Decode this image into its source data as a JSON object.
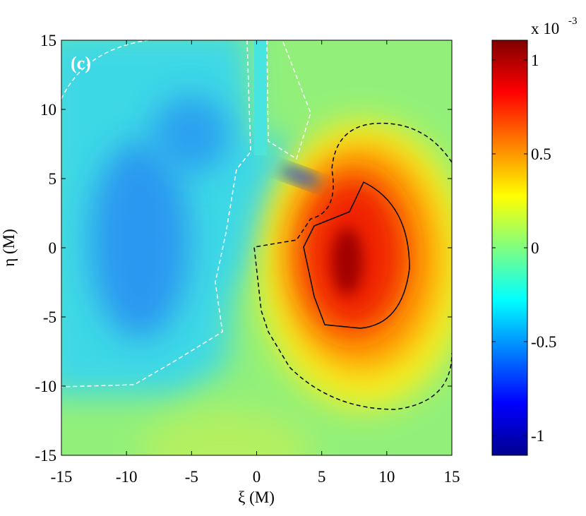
{
  "chart_data": {
    "type": "contour",
    "panel_label": "(c)",
    "xlabel": "ξ (M)",
    "ylabel": "η (M)",
    "xlim": [
      -15,
      15
    ],
    "ylim": [
      -15,
      15
    ],
    "xticks": [
      -15,
      -10,
      -5,
      0,
      5,
      10,
      15
    ],
    "yticks": [
      -15,
      -10,
      -5,
      0,
      5,
      10,
      15
    ],
    "colorbar": {
      "label": "x 10",
      "exponent": "-3",
      "lim": [
        -1.105,
        1.105
      ],
      "ticks": [
        -1,
        -0.5,
        0,
        0.5,
        1
      ]
    }
  }
}
